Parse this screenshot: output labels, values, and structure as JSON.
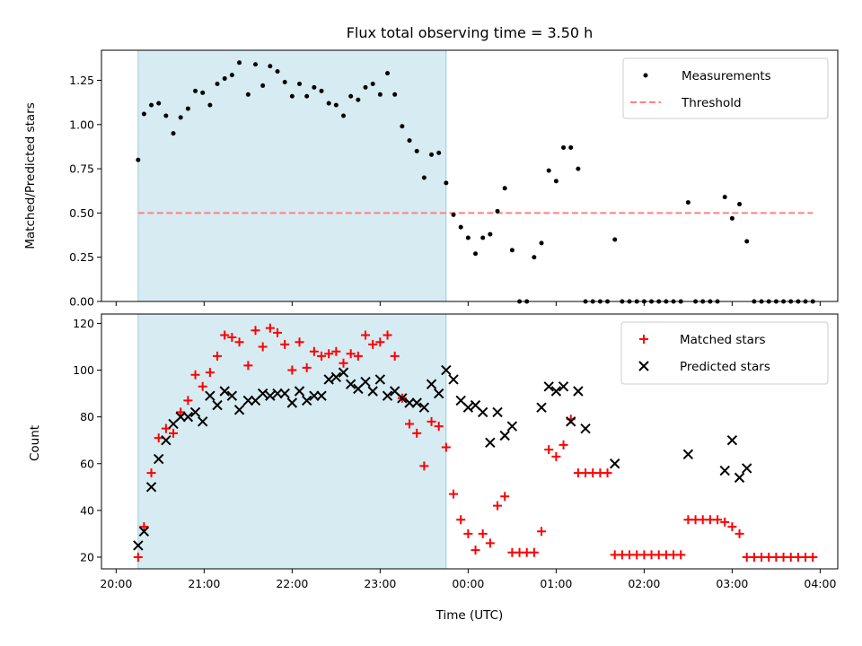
{
  "chart_data": [
    {
      "type": "scatter",
      "title": "Flux total observing time = 3.50 h",
      "xlabel": "",
      "ylabel": "Matched/Predicted stars",
      "ylim": [
        0,
        1.42
      ],
      "yticks": [
        "0.00",
        "0.25",
        "0.50",
        "0.75",
        "1.00",
        "1.25"
      ],
      "ytick_values": [
        0,
        0.25,
        0.5,
        0.75,
        1.0,
        1.25
      ],
      "shaded_span": [
        "20:15",
        "23:45"
      ],
      "threshold": {
        "name": "Threshold",
        "value": 0.5,
        "range": [
          "20:15",
          "03:55"
        ],
        "color": "#ff8080"
      },
      "legend": "top-right",
      "series": [
        {
          "name": "Measurements",
          "marker": "dot",
          "color": "#000000",
          "points": [
            [
              "20:15",
              0.8
            ],
            [
              "20:19",
              1.06
            ],
            [
              "20:24",
              1.11
            ],
            [
              "20:29",
              1.12
            ],
            [
              "20:34",
              1.05
            ],
            [
              "20:39",
              0.95
            ],
            [
              "20:44",
              1.04
            ],
            [
              "20:49",
              1.09
            ],
            [
              "20:54",
              1.19
            ],
            [
              "20:59",
              1.18
            ],
            [
              "21:04",
              1.11
            ],
            [
              "21:09",
              1.23
            ],
            [
              "21:14",
              1.26
            ],
            [
              "21:19",
              1.28
            ],
            [
              "21:24",
              1.35
            ],
            [
              "21:30",
              1.17
            ],
            [
              "21:35",
              1.34
            ],
            [
              "21:40",
              1.22
            ],
            [
              "21:45",
              1.33
            ],
            [
              "21:50",
              1.3
            ],
            [
              "21:55",
              1.24
            ],
            [
              "22:00",
              1.16
            ],
            [
              "22:05",
              1.23
            ],
            [
              "22:10",
              1.16
            ],
            [
              "22:15",
              1.21
            ],
            [
              "22:20",
              1.19
            ],
            [
              "22:25",
              1.12
            ],
            [
              "22:30",
              1.11
            ],
            [
              "22:35",
              1.05
            ],
            [
              "22:40",
              1.16
            ],
            [
              "22:45",
              1.14
            ],
            [
              "22:50",
              1.21
            ],
            [
              "22:55",
              1.23
            ],
            [
              "23:00",
              1.17
            ],
            [
              "23:05",
              1.29
            ],
            [
              "23:10",
              1.17
            ],
            [
              "23:15",
              0.99
            ],
            [
              "23:20",
              0.91
            ],
            [
              "23:25",
              0.85
            ],
            [
              "23:30",
              0.7
            ],
            [
              "23:35",
              0.83
            ],
            [
              "23:40",
              0.84
            ],
            [
              "23:45",
              0.67
            ],
            [
              "23:50",
              0.49
            ],
            [
              "23:55",
              0.42
            ],
            [
              "00:00",
              0.36
            ],
            [
              "00:05",
              0.27
            ],
            [
              "00:10",
              0.36
            ],
            [
              "00:15",
              0.38
            ],
            [
              "00:20",
              0.51
            ],
            [
              "00:25",
              0.64
            ],
            [
              "00:30",
              0.29
            ],
            [
              "00:35",
              0.0
            ],
            [
              "00:40",
              0.0
            ],
            [
              "00:45",
              0.25
            ],
            [
              "00:50",
              0.33
            ],
            [
              "00:55",
              0.74
            ],
            [
              "01:00",
              0.68
            ],
            [
              "01:05",
              0.87
            ],
            [
              "01:10",
              0.87
            ],
            [
              "01:15",
              0.75
            ],
            [
              "01:20",
              0.0
            ],
            [
              "01:25",
              0.0
            ],
            [
              "01:30",
              0.0
            ],
            [
              "01:35",
              0.0
            ],
            [
              "01:40",
              0.35
            ],
            [
              "01:45",
              0.0
            ],
            [
              "01:50",
              0.0
            ],
            [
              "01:55",
              0.0
            ],
            [
              "02:00",
              0.0
            ],
            [
              "02:05",
              0.0
            ],
            [
              "02:10",
              0.0
            ],
            [
              "02:15",
              0.0
            ],
            [
              "02:20",
              0.0
            ],
            [
              "02:25",
              0.0
            ],
            [
              "02:30",
              0.56
            ],
            [
              "02:35",
              0.0
            ],
            [
              "02:40",
              0.0
            ],
            [
              "02:45",
              0.0
            ],
            [
              "02:50",
              0.0
            ],
            [
              "02:55",
              0.59
            ],
            [
              "03:00",
              0.47
            ],
            [
              "03:05",
              0.55
            ],
            [
              "03:10",
              0.34
            ],
            [
              "03:15",
              0.0
            ],
            [
              "03:20",
              0.0
            ],
            [
              "03:25",
              0.0
            ],
            [
              "03:30",
              0.0
            ],
            [
              "03:35",
              0.0
            ],
            [
              "03:40",
              0.0
            ],
            [
              "03:45",
              0.0
            ],
            [
              "03:50",
              0.0
            ],
            [
              "03:55",
              0.0
            ]
          ]
        }
      ]
    },
    {
      "type": "scatter",
      "title": "",
      "xlabel": "Time (UTC)",
      "ylabel": "Count",
      "ylim": [
        15,
        124
      ],
      "yticks": [
        "20",
        "40",
        "60",
        "80",
        "100",
        "120"
      ],
      "ytick_values": [
        20,
        40,
        60,
        80,
        100,
        120
      ],
      "xticks": [
        "20:00",
        "21:00",
        "22:00",
        "23:00",
        "00:00",
        "01:00",
        "02:00",
        "03:00",
        "04:00"
      ],
      "xlim": [
        "19:50",
        "04:12"
      ],
      "shaded_span": [
        "20:15",
        "23:45"
      ],
      "legend": "top-right",
      "series": [
        {
          "name": "Matched stars",
          "marker": "plus",
          "color": "#ff0000",
          "points": [
            [
              "20:15",
              20
            ],
            [
              "20:19",
              33
            ],
            [
              "20:24",
              56
            ],
            [
              "20:29",
              71
            ],
            [
              "20:34",
              75
            ],
            [
              "20:39",
              73
            ],
            [
              "20:44",
              82
            ],
            [
              "20:49",
              87
            ],
            [
              "20:54",
              98
            ],
            [
              "20:59",
              93
            ],
            [
              "21:04",
              99
            ],
            [
              "21:09",
              106
            ],
            [
              "21:14",
              115
            ],
            [
              "21:19",
              114
            ],
            [
              "21:24",
              112
            ],
            [
              "21:30",
              102
            ],
            [
              "21:35",
              117
            ],
            [
              "21:40",
              110
            ],
            [
              "21:45",
              118
            ],
            [
              "21:50",
              116
            ],
            [
              "21:55",
              111
            ],
            [
              "22:00",
              100
            ],
            [
              "22:05",
              112
            ],
            [
              "22:10",
              101
            ],
            [
              "22:15",
              108
            ],
            [
              "22:20",
              106
            ],
            [
              "22:25",
              107
            ],
            [
              "22:30",
              108
            ],
            [
              "22:35",
              103
            ],
            [
              "22:40",
              107
            ],
            [
              "22:45",
              106
            ],
            [
              "22:50",
              115
            ],
            [
              "22:55",
              111
            ],
            [
              "23:00",
              112
            ],
            [
              "23:05",
              115
            ],
            [
              "23:10",
              106
            ],
            [
              "23:15",
              88
            ],
            [
              "23:20",
              77
            ],
            [
              "23:25",
              73
            ],
            [
              "23:30",
              59
            ],
            [
              "23:35",
              78
            ],
            [
              "23:40",
              76
            ],
            [
              "23:45",
              67
            ],
            [
              "23:50",
              47
            ],
            [
              "23:55",
              36
            ],
            [
              "00:00",
              30
            ],
            [
              "00:05",
              23
            ],
            [
              "00:10",
              30
            ],
            [
              "00:15",
              26
            ],
            [
              "00:20",
              42
            ],
            [
              "00:25",
              46
            ],
            [
              "00:30",
              22
            ],
            [
              "00:35",
              22
            ],
            [
              "00:40",
              22
            ],
            [
              "00:45",
              22
            ],
            [
              "00:50",
              31
            ],
            [
              "00:55",
              66
            ],
            [
              "01:00",
              63
            ],
            [
              "01:05",
              68
            ],
            [
              "01:10",
              79
            ],
            [
              "01:15",
              56
            ],
            [
              "01:20",
              56
            ],
            [
              "01:25",
              56
            ],
            [
              "01:30",
              56
            ],
            [
              "01:35",
              56
            ],
            [
              "01:40",
              21
            ],
            [
              "01:45",
              21
            ],
            [
              "01:50",
              21
            ],
            [
              "01:55",
              21
            ],
            [
              "02:00",
              21
            ],
            [
              "02:05",
              21
            ],
            [
              "02:10",
              21
            ],
            [
              "02:15",
              21
            ],
            [
              "02:20",
              21
            ],
            [
              "02:25",
              21
            ],
            [
              "02:30",
              36
            ],
            [
              "02:35",
              36
            ],
            [
              "02:40",
              36
            ],
            [
              "02:45",
              36
            ],
            [
              "02:50",
              36
            ],
            [
              "02:55",
              35
            ],
            [
              "03:00",
              33
            ],
            [
              "03:05",
              30
            ],
            [
              "03:10",
              20
            ],
            [
              "03:15",
              20
            ],
            [
              "03:20",
              20
            ],
            [
              "03:25",
              20
            ],
            [
              "03:30",
              20
            ],
            [
              "03:35",
              20
            ],
            [
              "03:40",
              20
            ],
            [
              "03:45",
              20
            ],
            [
              "03:50",
              20
            ],
            [
              "03:55",
              20
            ]
          ]
        },
        {
          "name": "Predicted stars",
          "marker": "x",
          "color": "#000000",
          "points": [
            [
              "20:15",
              25
            ],
            [
              "20:19",
              31
            ],
            [
              "20:24",
              50
            ],
            [
              "20:29",
              62
            ],
            [
              "20:34",
              70
            ],
            [
              "20:39",
              77
            ],
            [
              "20:44",
              80
            ],
            [
              "20:49",
              80
            ],
            [
              "20:54",
              82
            ],
            [
              "20:59",
              78
            ],
            [
              "21:04",
              89
            ],
            [
              "21:09",
              85
            ],
            [
              "21:14",
              91
            ],
            [
              "21:19",
              89
            ],
            [
              "21:24",
              83
            ],
            [
              "21:30",
              87
            ],
            [
              "21:35",
              87
            ],
            [
              "21:40",
              90
            ],
            [
              "21:45",
              89
            ],
            [
              "21:50",
              90
            ],
            [
              "21:55",
              90
            ],
            [
              "22:00",
              86
            ],
            [
              "22:05",
              91
            ],
            [
              "22:10",
              87
            ],
            [
              "22:15",
              89
            ],
            [
              "22:20",
              89
            ],
            [
              "22:25",
              96
            ],
            [
              "22:30",
              97
            ],
            [
              "22:35",
              99
            ],
            [
              "22:40",
              94
            ],
            [
              "22:45",
              92
            ],
            [
              "22:50",
              95
            ],
            [
              "22:55",
              91
            ],
            [
              "23:00",
              96
            ],
            [
              "23:05",
              89
            ],
            [
              "23:10",
              91
            ],
            [
              "23:15",
              88
            ],
            [
              "23:20",
              86
            ],
            [
              "23:25",
              86
            ],
            [
              "23:30",
              84
            ],
            [
              "23:35",
              94
            ],
            [
              "23:40",
              90
            ],
            [
              "23:45",
              100
            ],
            [
              "23:50",
              96
            ],
            [
              "23:55",
              87
            ],
            [
              "00:00",
              84
            ],
            [
              "00:05",
              85
            ],
            [
              "00:10",
              82
            ],
            [
              "00:15",
              69
            ],
            [
              "00:20",
              82
            ],
            [
              "00:25",
              72
            ],
            [
              "00:30",
              76
            ],
            [
              "00:50",
              84
            ],
            [
              "00:55",
              93
            ],
            [
              "01:00",
              91
            ],
            [
              "01:05",
              93
            ],
            [
              "01:10",
              78
            ],
            [
              "01:15",
              91
            ],
            [
              "01:20",
              75
            ],
            [
              "01:40",
              60
            ],
            [
              "02:30",
              64
            ],
            [
              "02:55",
              57
            ],
            [
              "03:00",
              70
            ],
            [
              "03:05",
              54
            ],
            [
              "03:10",
              58
            ]
          ]
        }
      ]
    }
  ]
}
